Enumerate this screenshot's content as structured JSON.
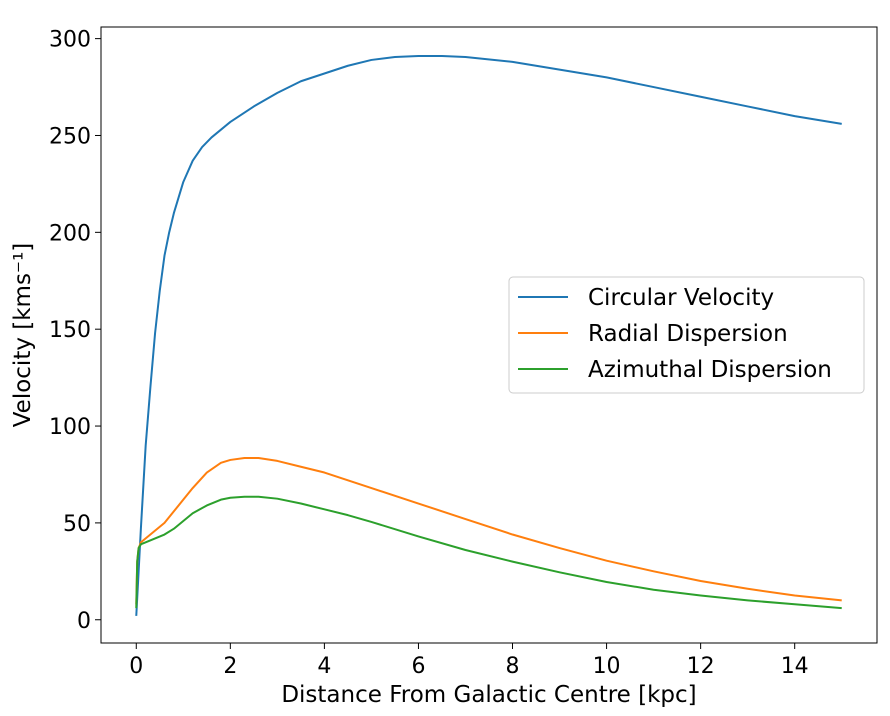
{
  "chart_data": {
    "type": "line",
    "title": "",
    "xlabel": "Distance From Galactic Centre [kpc]",
    "ylabel": "Velocity [kms⁻¹]",
    "xlim": [
      -0.75,
      15.75
    ],
    "ylim": [
      -12,
      306
    ],
    "xticks": [
      0,
      2,
      4,
      6,
      8,
      10,
      12,
      14
    ],
    "yticks": [
      0,
      50,
      100,
      150,
      200,
      250,
      300
    ],
    "grid": false,
    "legend_position": "center-right",
    "series": [
      {
        "name": "Circular Velocity",
        "color": "#1f77b4",
        "x": [
          0,
          0.05,
          0.1,
          0.2,
          0.3,
          0.4,
          0.5,
          0.6,
          0.7,
          0.8,
          0.9,
          1.0,
          1.2,
          1.4,
          1.6,
          1.8,
          2.0,
          2.5,
          3.0,
          3.5,
          4.0,
          4.5,
          5.0,
          5.5,
          6.0,
          6.5,
          7.0,
          8.0,
          9.0,
          10.0,
          11.0,
          12.0,
          13.0,
          14.0,
          15.0
        ],
        "y": [
          2,
          25,
          48,
          90,
          120,
          148,
          170,
          188,
          200,
          210,
          218,
          226,
          237,
          244,
          249,
          253,
          257,
          265,
          272,
          278,
          282,
          286,
          289,
          290.5,
          291,
          291,
          290.5,
          288,
          284,
          280,
          275,
          270,
          265,
          260,
          256
        ]
      },
      {
        "name": "Radial Dispersion",
        "color": "#ff7f0e",
        "x": [
          0,
          0.02,
          0.05,
          0.1,
          0.2,
          0.4,
          0.6,
          0.8,
          1.0,
          1.2,
          1.5,
          1.8,
          2.0,
          2.3,
          2.6,
          3.0,
          3.5,
          4.0,
          4.5,
          5.0,
          6.0,
          7.0,
          8.0,
          9.0,
          10.0,
          11.0,
          12.0,
          13.0,
          14.0,
          15.0
        ],
        "y": [
          8,
          30,
          37,
          40,
          42,
          46,
          50,
          56,
          62,
          68,
          76,
          81,
          82.5,
          83.5,
          83.5,
          82,
          79,
          76,
          72,
          68,
          60,
          52,
          44,
          37,
          30.5,
          25,
          20,
          16,
          12.5,
          10
        ]
      },
      {
        "name": "Azimuthal Dispersion",
        "color": "#2ca02c",
        "x": [
          0,
          0.02,
          0.05,
          0.1,
          0.2,
          0.4,
          0.6,
          0.8,
          1.0,
          1.2,
          1.5,
          1.8,
          2.0,
          2.3,
          2.6,
          3.0,
          3.5,
          4.0,
          4.5,
          5.0,
          6.0,
          7.0,
          8.0,
          9.0,
          10.0,
          11.0,
          12.0,
          13.0,
          14.0,
          15.0
        ],
        "y": [
          6,
          30,
          37,
          39,
          40,
          42,
          44,
          47,
          51,
          55,
          59,
          62,
          63,
          63.5,
          63.5,
          62.5,
          60,
          57,
          54,
          50.5,
          43,
          36,
          30,
          24.5,
          19.5,
          15.5,
          12.5,
          10,
          8,
          6
        ]
      }
    ]
  }
}
